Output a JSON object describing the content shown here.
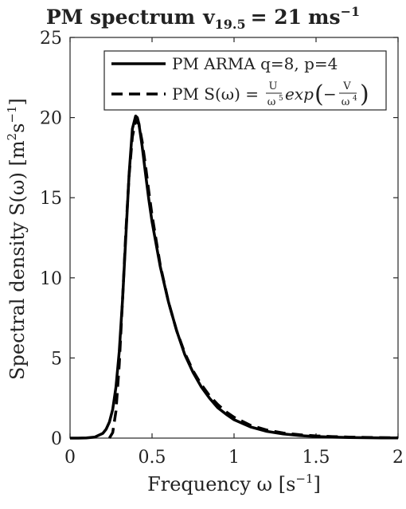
{
  "chart_data": {
    "type": "line",
    "title": "PM spectrum",
    "title_math": {
      "v_symbol": "v",
      "v_subscript": "19.5",
      "value": "= 21",
      "unit_base": "ms",
      "unit_exp": "−1"
    },
    "xlabel": "Frequency ω [s",
    "xlabel_exp": "−1",
    "xlabel_close": "]",
    "ylabel": "Spectral density S(ω) [m",
    "ylabel_exp1": "2",
    "ylabel_mid": "s",
    "ylabel_exp2": "−1",
    "ylabel_close": "]",
    "xlim": [
      0,
      2
    ],
    "ylim": [
      0,
      25
    ],
    "xticks": [
      0,
      0.5,
      1,
      1.5,
      2
    ],
    "xtick_labels": [
      "0",
      "0.5",
      "1",
      "1.5",
      "2"
    ],
    "yticks": [
      0,
      5,
      10,
      15,
      20,
      25
    ],
    "ytick_labels": [
      "0",
      "5",
      "10",
      "15",
      "20",
      "25"
    ],
    "grid": false,
    "legend_position": "top-right",
    "legend": [
      "PM ARMA q=8, p=4",
      "PM S(ω) = U/ω⁵ exp(−V/ω⁴)"
    ],
    "legend_text_1": "PM ARMA q=8, p=4",
    "legend_text_2_prefix": "PM S(ω) =",
    "legend_frac1_num": "U",
    "legend_frac1_den": "ω",
    "legend_frac1_den_exp": "5",
    "legend_exp_word": "exp",
    "legend_frac2_num": "V",
    "legend_frac2_den": "ω",
    "legend_frac2_den_exp": "4",
    "series": [
      {
        "name": "PM ARMA q=8, p=4",
        "style": "solid",
        "color": "#000000",
        "x": [
          0,
          0.05,
          0.1,
          0.15,
          0.2,
          0.22,
          0.24,
          0.26,
          0.28,
          0.3,
          0.32,
          0.34,
          0.36,
          0.38,
          0.4,
          0.41,
          0.42,
          0.44,
          0.46,
          0.48,
          0.5,
          0.55,
          0.6,
          0.65,
          0.7,
          0.75,
          0.8,
          0.85,
          0.9,
          0.95,
          1.0,
          1.1,
          1.2,
          1.3,
          1.4,
          1.5,
          1.6,
          1.7,
          1.8,
          1.9,
          2.0
        ],
        "y": [
          0,
          0,
          0.01,
          0.06,
          0.3,
          0.55,
          1.0,
          1.8,
          3.2,
          5.4,
          8.6,
          12.5,
          16.5,
          19.3,
          20.1,
          20.0,
          19.6,
          18.2,
          16.5,
          14.9,
          13.5,
          10.7,
          8.5,
          6.7,
          5.2,
          4.1,
          3.2,
          2.5,
          1.9,
          1.5,
          1.15,
          0.7,
          0.42,
          0.26,
          0.16,
          0.1,
          0.06,
          0.04,
          0.025,
          0.015,
          0.01
        ]
      },
      {
        "name": "PM S(ω) = U/ω⁵ exp(−V/ω⁴)",
        "style": "dashed",
        "color": "#000000",
        "x": [
          0.24,
          0.26,
          0.28,
          0.3,
          0.32,
          0.34,
          0.36,
          0.38,
          0.4,
          0.42,
          0.44,
          0.46,
          0.48,
          0.5,
          0.55,
          0.6,
          0.65,
          0.7,
          0.75,
          0.8,
          0.85,
          0.9,
          0.95,
          1.0,
          1.1,
          1.2,
          1.3,
          1.4,
          1.5,
          1.6,
          1.7,
          1.8,
          1.9,
          2.0
        ],
        "y": [
          0,
          0.35,
          1.7,
          4.6,
          8.6,
          12.8,
          16.4,
          18.8,
          19.8,
          19.6,
          18.5,
          17.0,
          15.4,
          13.9,
          10.8,
          8.5,
          6.7,
          5.3,
          4.2,
          3.35,
          2.65,
          2.1,
          1.65,
          1.3,
          0.8,
          0.5,
          0.32,
          0.21,
          0.14,
          0.095,
          0.065,
          0.045,
          0.032,
          0.023
        ]
      }
    ]
  }
}
